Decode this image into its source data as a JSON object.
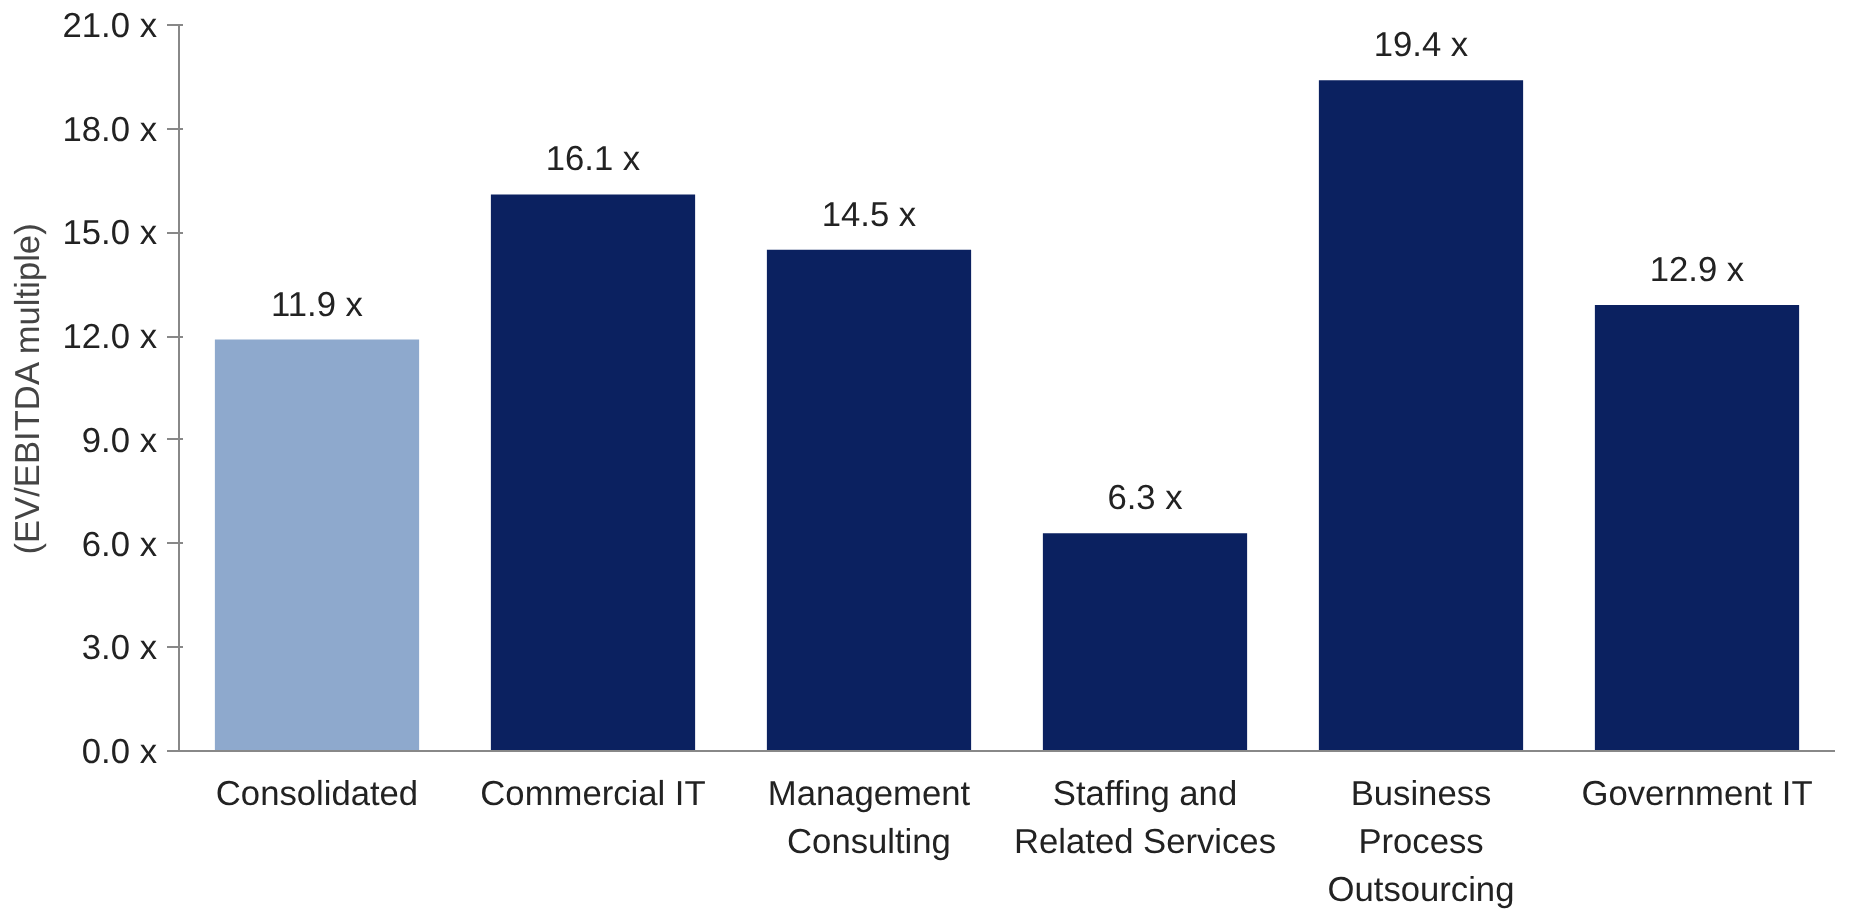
{
  "chart_data": {
    "type": "bar",
    "ylabel": "(EV/EBITDA multiple)",
    "categories": [
      "Consolidated",
      "Commercial IT",
      "Management\nConsulting",
      "Staffing and\nRelated Services",
      "Business\nProcess\nOutsourcing",
      "Government IT"
    ],
    "values": [
      11.9,
      16.1,
      14.5,
      6.3,
      19.4,
      12.9
    ],
    "colors": [
      "#8ea9cd",
      "#0b2160",
      "#0b2160",
      "#0b2160",
      "#0b2160",
      "#0b2160"
    ],
    "value_labels": [
      "11.9 x",
      "16.1 x",
      "14.5 x",
      "6.3 x",
      "19.4 x",
      "12.9 x"
    ],
    "ylim": [
      0,
      21
    ],
    "yticks": [
      {
        "value": 0,
        "label": "0.0 x"
      },
      {
        "value": 3,
        "label": "3.0 x"
      },
      {
        "value": 6,
        "label": "6.0 x"
      },
      {
        "value": 9,
        "label": "9.0 x"
      },
      {
        "value": 12,
        "label": "12.0 x"
      },
      {
        "value": 15,
        "label": "15.0 x"
      },
      {
        "value": 18,
        "label": "18.0 x"
      },
      {
        "value": 21,
        "label": "21.0 x"
      }
    ],
    "grid": false
  }
}
